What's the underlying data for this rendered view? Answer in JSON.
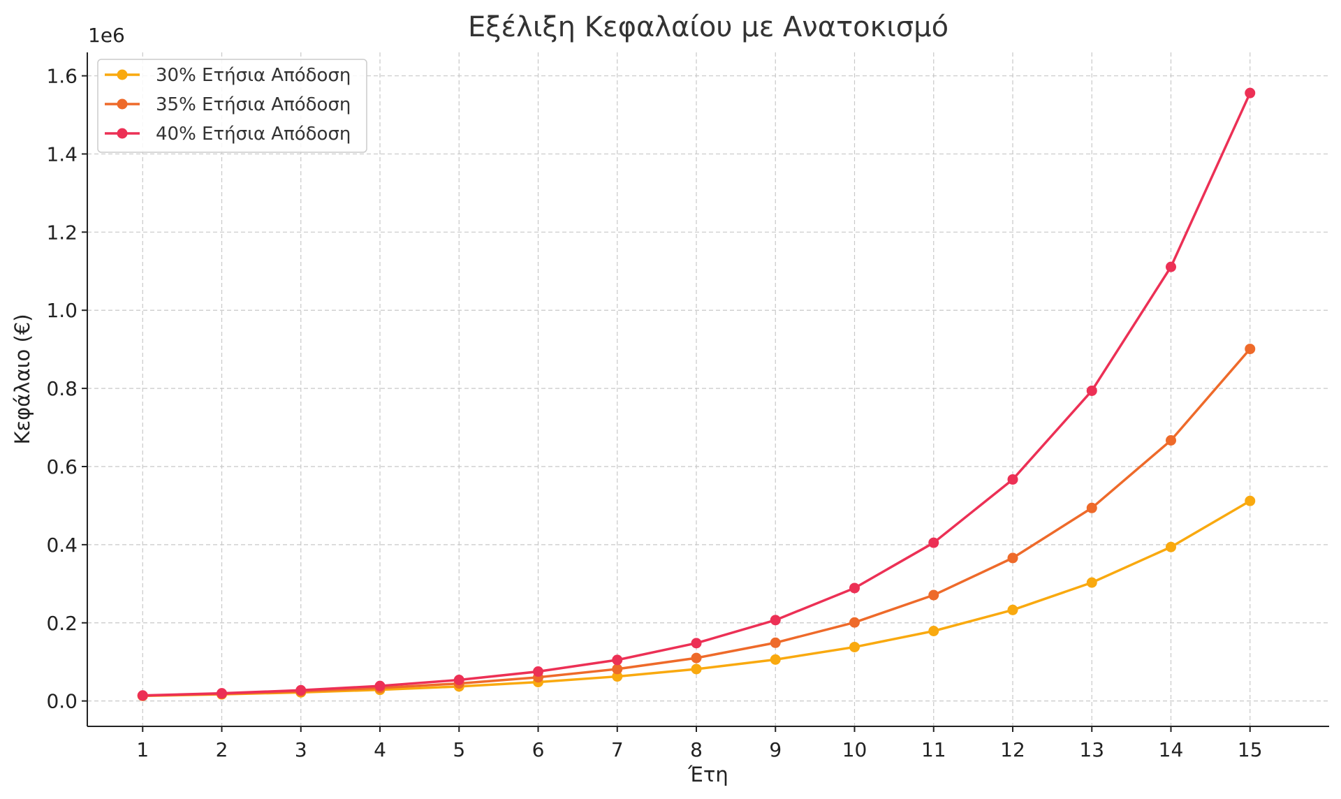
{
  "chart_data": {
    "type": "line",
    "title": "Εξέλιξη Κεφαλαίου με Ανατοκισμό",
    "xlabel": "Έτη",
    "ylabel": "Κεφάλαιο (€)",
    "y_offset_label": "1e6",
    "x": [
      1,
      2,
      3,
      4,
      5,
      6,
      7,
      8,
      9,
      10,
      11,
      12,
      13,
      14,
      15
    ],
    "xlim": [
      0.3,
      16.0
    ],
    "ylim": [
      -0.065,
      1.66
    ],
    "y_ticks": [
      0.0,
      0.2,
      0.4,
      0.6,
      0.8,
      1.0,
      1.2,
      1.4,
      1.6
    ],
    "y_tick_labels": [
      "0.0",
      "0.2",
      "0.4",
      "0.6",
      "0.8",
      "1.0",
      "1.2",
      "1.4",
      "1.6"
    ],
    "grid": true,
    "legend_position": "top-left",
    "series": [
      {
        "name": "30% Ετήσια Απόδοση",
        "color": "#f9a90f",
        "values": [
          0.013,
          0.0169,
          0.022,
          0.0286,
          0.0371,
          0.0483,
          0.0627,
          0.0816,
          0.106,
          0.138,
          0.179,
          0.233,
          0.303,
          0.394,
          0.512
        ]
      },
      {
        "name": "35% Ετήσια Απόδοση",
        "color": "#ee6a2a",
        "values": [
          0.0135,
          0.0182,
          0.0246,
          0.0332,
          0.0448,
          0.0605,
          0.0817,
          0.11,
          0.149,
          0.201,
          0.271,
          0.366,
          0.494,
          0.667,
          0.901
        ]
      },
      {
        "name": "40% Ετήσια Απόδοση",
        "color": "#ec3055",
        "values": [
          0.014,
          0.0196,
          0.0274,
          0.0384,
          0.0538,
          0.0753,
          0.105,
          0.148,
          0.207,
          0.289,
          0.405,
          0.567,
          0.794,
          1.111,
          1.556
        ]
      }
    ]
  }
}
